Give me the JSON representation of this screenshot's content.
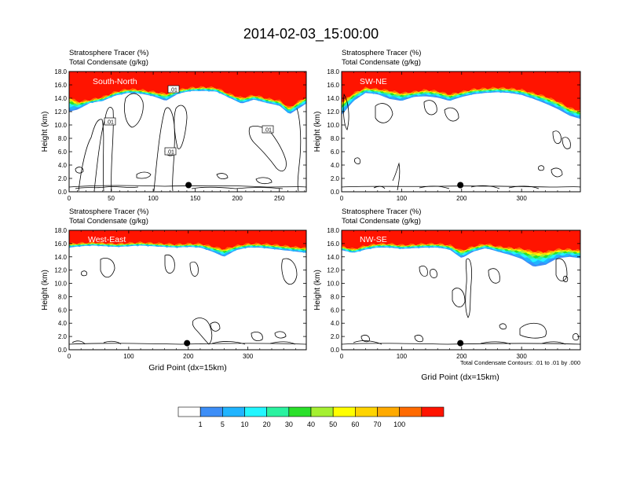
{
  "figure": {
    "title": "2014-02-03_15:00:00",
    "footnote": "Total Condensate Contours: .01 to .01 by .000"
  },
  "colors": {
    "fill_levels": [
      "#ffffff",
      "#3d8ef7",
      "#20b4ff",
      "#22f6ff",
      "#2af2a0",
      "#2ae02a",
      "#a5f031",
      "#ffff00",
      "#ffd400",
      "#ffaa00",
      "#ff6a00",
      "#ff1400"
    ],
    "contour": "#000000",
    "marker": "#000000"
  },
  "colorbar": {
    "labels": [
      "1",
      "5",
      "10",
      "20",
      "30",
      "40",
      "50",
      "60",
      "70",
      "100"
    ]
  },
  "chart_data": [
    {
      "type": "heatmap",
      "panel": "South-North",
      "header_line1": "Stratosphere Tracer   (%)",
      "header_line2": "Total Condensate   (g/kg)",
      "ylabel": "Height (km)",
      "xlabel": "",
      "xlim": [
        0,
        282
      ],
      "ylim": [
        0,
        18
      ],
      "xticks": [
        "0",
        "50",
        "100",
        "150",
        "200",
        "250"
      ],
      "yticks": [
        "0.0",
        "2.0",
        "4.0",
        "6.0",
        "8.0",
        "10.0",
        "12.0",
        "14.0",
        "16.0",
        "18.0"
      ],
      "tracer_front": {
        "x": [
          0,
          10,
          25,
          40,
          55,
          70,
          85,
          100,
          115,
          130,
          145,
          160,
          175,
          190,
          205,
          220,
          235,
          250,
          262,
          272,
          282
        ],
        "top_km": [
          14.3,
          13.5,
          13.8,
          14.2,
          15.0,
          15.4,
          15.3,
          15.0,
          14.7,
          15.3,
          15.6,
          15.7,
          15.6,
          14.7,
          14.1,
          14.5,
          14.0,
          13.7,
          12.6,
          13.5,
          14.2
        ],
        "edge_km": [
          12.0,
          12.3,
          13.3,
          13.6,
          14.4,
          14.8,
          14.7,
          14.3,
          13.6,
          14.7,
          15.1,
          15.1,
          15.0,
          14.1,
          13.2,
          13.8,
          13.3,
          12.9,
          11.6,
          12.4,
          13.2
        ]
      },
      "contour_labels": [
        ".01",
        ".01",
        ".01",
        ".01"
      ],
      "marker": {
        "x": 142,
        "y": 1.0
      }
    },
    {
      "type": "heatmap",
      "panel": "SW-NE",
      "header_line1": "Stratosphere Tracer   (%)",
      "header_line2": "Total Condensate   (g/kg)",
      "ylabel": "Height (km)",
      "xlabel": "",
      "xlim": [
        0,
        398
      ],
      "ylim": [
        0,
        18
      ],
      "xticks": [
        "0",
        "100",
        "200",
        "300"
      ],
      "yticks": [
        "0.0",
        "2.0",
        "4.0",
        "6.0",
        "8.0",
        "10.0",
        "12.0",
        "14.0",
        "16.0",
        "18.0"
      ],
      "tracer_front": {
        "x": [
          0,
          20,
          40,
          60,
          80,
          100,
          120,
          140,
          160,
          180,
          200,
          220,
          240,
          260,
          280,
          300,
          320,
          340,
          360,
          380,
          398
        ],
        "top_km": [
          13.5,
          14.8,
          15.6,
          15.4,
          15.2,
          14.8,
          15.0,
          15.3,
          15.1,
          14.6,
          15.0,
          15.4,
          15.5,
          15.6,
          15.5,
          15.3,
          14.8,
          14.3,
          13.6,
          12.6,
          12.2
        ],
        "edge_km": [
          11.5,
          13.6,
          14.8,
          14.6,
          13.9,
          13.6,
          14.2,
          14.3,
          14.1,
          13.6,
          14.2,
          14.6,
          14.8,
          14.9,
          14.8,
          14.5,
          13.9,
          13.2,
          12.4,
          11.4,
          10.9
        ]
      },
      "contour_labels": [],
      "marker": {
        "x": 198,
        "y": 1.0
      }
    },
    {
      "type": "heatmap",
      "panel": "West-East",
      "header_line1": "Stratosphere Tracer   (%)",
      "header_line2": "Total Condensate   (g/kg)",
      "ylabel": "Height (km)",
      "xlabel": "Grid Point (dx=15km)",
      "xlim": [
        0,
        398
      ],
      "ylim": [
        0,
        18
      ],
      "xticks": [
        "0",
        "100",
        "200",
        "300"
      ],
      "yticks": [
        "0.0",
        "2.0",
        "4.0",
        "6.0",
        "8.0",
        "10.0",
        "12.0",
        "14.0",
        "16.0",
        "18.0"
      ],
      "tracer_front": {
        "x": [
          0,
          20,
          40,
          60,
          80,
          100,
          120,
          140,
          160,
          180,
          200,
          220,
          240,
          260,
          280,
          300,
          320,
          340,
          360,
          380,
          398
        ],
        "top_km": [
          16.0,
          16.1,
          16.2,
          16.1,
          16.0,
          16.1,
          16.2,
          16.1,
          16.0,
          15.9,
          16.0,
          16.0,
          15.6,
          15.2,
          15.7,
          16.0,
          16.0,
          15.9,
          15.7,
          15.5,
          15.4
        ],
        "edge_km": [
          15.4,
          15.6,
          15.7,
          15.6,
          15.5,
          15.6,
          15.7,
          15.6,
          15.5,
          15.4,
          15.5,
          15.4,
          14.8,
          14.0,
          15.0,
          15.4,
          15.4,
          15.2,
          15.0,
          14.8,
          14.6
        ]
      },
      "contour_labels": [],
      "marker": {
        "x": 198,
        "y": 1.0
      }
    },
    {
      "type": "heatmap",
      "panel": "NW-SE",
      "header_line1": "Stratosphere Tracer   (%)",
      "header_line2": "Total Condensate   (g/kg)",
      "ylabel": "Height (km)",
      "xlabel": "Grid Point (dx=15km)",
      "xlim": [
        0,
        398
      ],
      "ylim": [
        0,
        18
      ],
      "xticks": [
        "0",
        "100",
        "200",
        "300"
      ],
      "yticks": [
        "0.0",
        "2.0",
        "4.0",
        "6.0",
        "8.0",
        "10.0",
        "12.0",
        "14.0",
        "16.0",
        "18.0"
      ],
      "tracer_front": {
        "x": [
          0,
          20,
          40,
          60,
          80,
          100,
          120,
          140,
          160,
          180,
          200,
          220,
          240,
          260,
          280,
          300,
          320,
          340,
          360,
          380,
          398
        ],
        "top_km": [
          15.6,
          15.2,
          15.7,
          16.0,
          16.0,
          15.8,
          15.9,
          16.0,
          16.0,
          15.8,
          15.0,
          15.6,
          16.0,
          15.6,
          15.4,
          15.3,
          14.9,
          14.8,
          15.2,
          15.2,
          15.0
        ],
        "edge_km": [
          15.0,
          14.6,
          15.1,
          15.4,
          15.4,
          15.2,
          15.3,
          15.4,
          15.4,
          15.1,
          13.8,
          14.8,
          15.3,
          14.8,
          14.3,
          13.7,
          12.5,
          12.8,
          13.8,
          14.0,
          13.8
        ]
      },
      "contour_labels": [],
      "marker": {
        "x": 198,
        "y": 1.0
      }
    }
  ]
}
